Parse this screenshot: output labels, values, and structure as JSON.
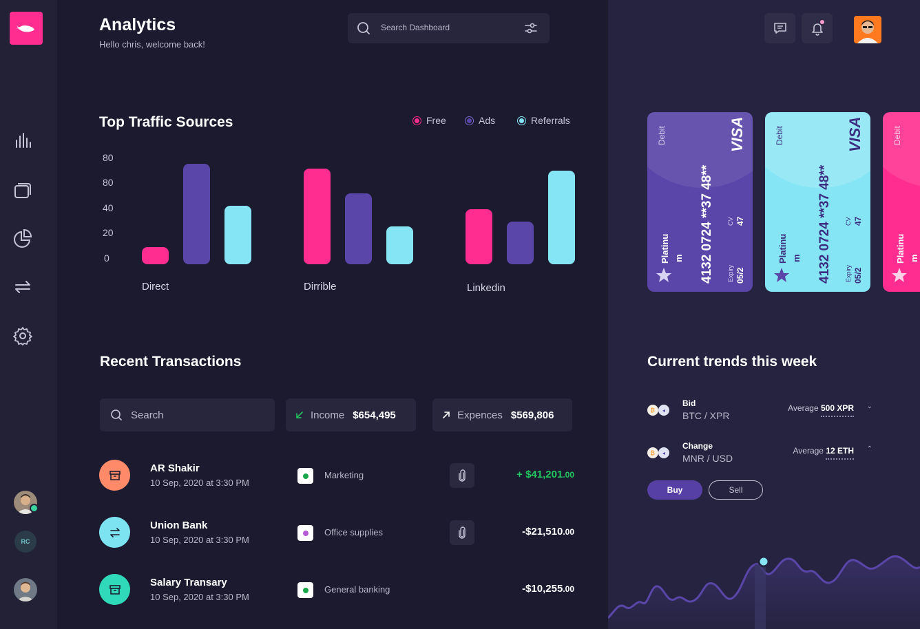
{
  "header": {
    "title": "Analytics",
    "subtitle": "Hello chris, welcome back!",
    "search_placeholder": "Search Dashboard"
  },
  "sidebar": {
    "items": [
      {
        "icon": "bar-chart-icon"
      },
      {
        "icon": "cards-icon"
      },
      {
        "icon": "pie-chart-icon"
      },
      {
        "icon": "transfer-icon"
      },
      {
        "icon": "gear-icon"
      }
    ],
    "rc_initials": "RC"
  },
  "traffic": {
    "title": "Top Traffic Sources",
    "legend": [
      {
        "label": "Free",
        "color": "#ff2d8f"
      },
      {
        "label": "Ads",
        "color": "#5a46a8"
      },
      {
        "label": "Referrals",
        "color": "#86e5f4"
      }
    ],
    "yticks": [
      "80",
      "80",
      "40",
      "20",
      "0"
    ]
  },
  "chart_data": {
    "type": "bar",
    "categories": [
      "Direct",
      "Dirrible",
      "Linkedin"
    ],
    "series": [
      {
        "name": "Free",
        "values": [
          16,
          90,
          52
        ]
      },
      {
        "name": "Ads",
        "values": [
          95,
          67,
          40
        ]
      },
      {
        "name": "Referrals",
        "values": [
          55,
          36,
          88
        ]
      }
    ],
    "title": "Top Traffic Sources",
    "ytick_labels": [
      "80",
      "80",
      "40",
      "20",
      "0"
    ],
    "legend_position": "top-right",
    "grid": false
  },
  "transactions": {
    "title": "Recent Transactions",
    "search_placeholder": "Search",
    "income_label": "Income",
    "income_value": "$654,495",
    "expenses_label": "Expences",
    "expenses_value": "$569,806",
    "rows": [
      {
        "name": "AR Shakir",
        "date": "10 Sep, 2020 at 3:30 PM",
        "category": "Marketing",
        "amount_main": "+ $41,201",
        "amount_cents": ".00",
        "color": "#ff8a6a",
        "cat_color": "#1aa64b",
        "amount_color": "#22c55e"
      },
      {
        "name": "Union Bank",
        "date": "10 Sep, 2020 at 3:30 PM",
        "category": "Office supplies",
        "amount_main": "-$21,510",
        "amount_cents": ".00",
        "color": "#7ee3f1",
        "cat_color": "#b65ad6",
        "amount_color": "#ffffff"
      },
      {
        "name": "Salary Transary",
        "date": "10 Sep, 2020 at 3:30 PM",
        "category": "General banking",
        "amount_main": "-$10,255",
        "amount_cents": ".00",
        "color": "#2fd9b9",
        "cat_color": "#1aa64b",
        "amount_color": "#ffffff"
      }
    ]
  },
  "cards": [
    {
      "type": "Debit",
      "brand": "VISA",
      "number": "4132 0724 **37 48**",
      "cv_label": "CV",
      "cv": "47",
      "tier": "Platinu",
      "tier2": "m",
      "expiry_label": "Expiry",
      "expiry": "05/2",
      "bg": "#5a46a8",
      "fg": "#ffffff"
    },
    {
      "type": "Debit",
      "brand": "VISA",
      "number": "4132 0724 **37 48**",
      "cv_label": "CV",
      "cv": "47",
      "tier": "Platinu",
      "tier2": "m",
      "expiry_label": "Expiry",
      "expiry": "05/2",
      "bg": "#86e5f4",
      "fg": "#3b2d80"
    },
    {
      "type": "Debit",
      "tier": "Platinu",
      "tier2": "m",
      "bg": "#ff2d8f",
      "fg": "#ffffff"
    }
  ],
  "trends": {
    "title": "Current trends this week",
    "rows": [
      {
        "kind": "Bid",
        "pair": "BTC / XPR",
        "avg_label": "Average",
        "avg_value": "500 XPR",
        "chevron": "⌄"
      },
      {
        "kind": "Change",
        "pair": "MNR / USD",
        "avg_label": "Average",
        "avg_value": "12 ETH",
        "chevron": "⌃"
      }
    ],
    "buy_label": "Buy",
    "sell_label": "Sell"
  }
}
